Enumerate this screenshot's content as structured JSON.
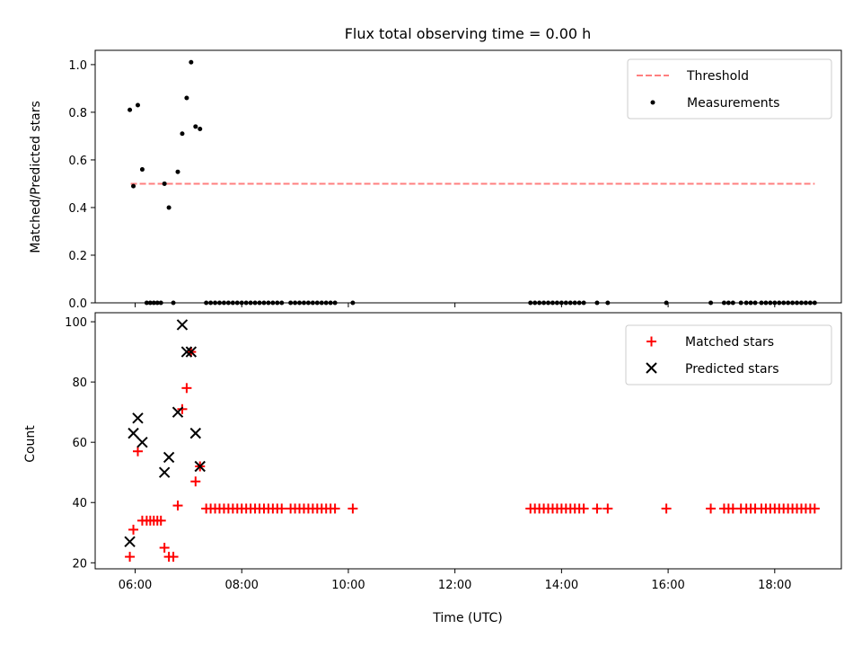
{
  "chart_data": [
    {
      "type": "scatter",
      "title": "Flux total observing time = 0.00 h",
      "ylabel": "Matched/Predicted stars",
      "xlabel": "",
      "ylim": [
        0,
        1.06
      ],
      "xlim": [
        "05:15",
        "19:15"
      ],
      "yticks": [
        "0.0",
        "0.2",
        "0.4",
        "0.6",
        "0.8",
        "1.0"
      ],
      "legend_position": "top-right",
      "threshold": {
        "name": "Threshold",
        "value": 0.5,
        "x_start": "05:55",
        "x_end": "18:45",
        "color": "#ff7f7f",
        "style": "dashed"
      },
      "series": [
        {
          "name": "Measurements",
          "color": "#000000",
          "marker": "dot",
          "points": [
            [
              "05:54",
              0.81
            ],
            [
              "05:58",
              0.49
            ],
            [
              "06:03",
              0.83
            ],
            [
              "06:08",
              0.56
            ],
            [
              "06:13",
              0
            ],
            [
              "06:17",
              0
            ],
            [
              "06:21",
              0
            ],
            [
              "06:25",
              0
            ],
            [
              "06:29",
              0
            ],
            [
              "06:33",
              0.5
            ],
            [
              "06:38",
              0.4
            ],
            [
              "06:43",
              0
            ],
            [
              "06:48",
              0.55
            ],
            [
              "06:53",
              0.71
            ],
            [
              "06:58",
              0.86
            ],
            [
              "07:03",
              1.01
            ],
            [
              "07:08",
              0.74
            ],
            [
              "07:13",
              0.73
            ],
            [
              "07:20",
              0
            ],
            [
              "07:25",
              0
            ],
            [
              "07:30",
              0
            ],
            [
              "07:35",
              0
            ],
            [
              "07:40",
              0
            ],
            [
              "07:45",
              0
            ],
            [
              "07:50",
              0
            ],
            [
              "07:55",
              0
            ],
            [
              "08:00",
              0
            ],
            [
              "08:05",
              0
            ],
            [
              "08:10",
              0
            ],
            [
              "08:15",
              0
            ],
            [
              "08:20",
              0
            ],
            [
              "08:25",
              0
            ],
            [
              "08:30",
              0
            ],
            [
              "08:35",
              0
            ],
            [
              "08:40",
              0
            ],
            [
              "08:45",
              0
            ],
            [
              "08:55",
              0
            ],
            [
              "09:00",
              0
            ],
            [
              "09:05",
              0
            ],
            [
              "09:10",
              0
            ],
            [
              "09:15",
              0
            ],
            [
              "09:20",
              0
            ],
            [
              "09:25",
              0
            ],
            [
              "09:30",
              0
            ],
            [
              "09:35",
              0
            ],
            [
              "09:40",
              0
            ],
            [
              "09:45",
              0
            ],
            [
              "10:05",
              0
            ],
            [
              "13:25",
              0
            ],
            [
              "13:30",
              0
            ],
            [
              "13:35",
              0
            ],
            [
              "13:40",
              0
            ],
            [
              "13:45",
              0
            ],
            [
              "13:50",
              0
            ],
            [
              "13:55",
              0
            ],
            [
              "14:00",
              0
            ],
            [
              "14:05",
              0
            ],
            [
              "14:10",
              0
            ],
            [
              "14:15",
              0
            ],
            [
              "14:20",
              0
            ],
            [
              "14:25",
              0
            ],
            [
              "14:40",
              0
            ],
            [
              "14:52",
              0
            ],
            [
              "15:58",
              0
            ],
            [
              "16:48",
              0
            ],
            [
              "17:03",
              0
            ],
            [
              "17:08",
              0
            ],
            [
              "17:13",
              0
            ],
            [
              "17:22",
              0
            ],
            [
              "17:28",
              0
            ],
            [
              "17:33",
              0
            ],
            [
              "17:38",
              0
            ],
            [
              "17:45",
              0
            ],
            [
              "17:50",
              0
            ],
            [
              "17:55",
              0
            ],
            [
              "18:00",
              0
            ],
            [
              "18:05",
              0
            ],
            [
              "18:10",
              0
            ],
            [
              "18:15",
              0
            ],
            [
              "18:20",
              0
            ],
            [
              "18:25",
              0
            ],
            [
              "18:30",
              0
            ],
            [
              "18:35",
              0
            ],
            [
              "18:40",
              0
            ],
            [
              "18:45",
              0
            ]
          ]
        }
      ]
    },
    {
      "type": "scatter",
      "title": "",
      "xlabel": "Time (UTC)",
      "ylabel": "Count",
      "ylim": [
        18,
        103
      ],
      "xlim": [
        "05:15",
        "19:15"
      ],
      "yticks": [
        "20",
        "40",
        "60",
        "80",
        "100"
      ],
      "xticks": [
        "06:00",
        "08:00",
        "10:00",
        "12:00",
        "14:00",
        "16:00",
        "18:00"
      ],
      "legend_position": "top-right",
      "series": [
        {
          "name": "Matched stars",
          "color": "#ff0000",
          "marker": "plus",
          "points": [
            [
              "05:54",
              22
            ],
            [
              "05:58",
              31
            ],
            [
              "06:03",
              57
            ],
            [
              "06:08",
              34
            ],
            [
              "06:13",
              34
            ],
            [
              "06:17",
              34
            ],
            [
              "06:21",
              34
            ],
            [
              "06:25",
              34
            ],
            [
              "06:29",
              34
            ],
            [
              "06:33",
              25
            ],
            [
              "06:38",
              22
            ],
            [
              "06:43",
              22
            ],
            [
              "06:48",
              39
            ],
            [
              "06:53",
              71
            ],
            [
              "06:58",
              78
            ],
            [
              "07:03",
              90
            ],
            [
              "07:08",
              47
            ],
            [
              "07:13",
              52
            ],
            [
              "07:20",
              38
            ],
            [
              "07:25",
              38
            ],
            [
              "07:30",
              38
            ],
            [
              "07:35",
              38
            ],
            [
              "07:40",
              38
            ],
            [
              "07:45",
              38
            ],
            [
              "07:50",
              38
            ],
            [
              "07:55",
              38
            ],
            [
              "08:00",
              38
            ],
            [
              "08:05",
              38
            ],
            [
              "08:10",
              38
            ],
            [
              "08:15",
              38
            ],
            [
              "08:20",
              38
            ],
            [
              "08:25",
              38
            ],
            [
              "08:30",
              38
            ],
            [
              "08:35",
              38
            ],
            [
              "08:40",
              38
            ],
            [
              "08:45",
              38
            ],
            [
              "08:55",
              38
            ],
            [
              "09:00",
              38
            ],
            [
              "09:05",
              38
            ],
            [
              "09:10",
              38
            ],
            [
              "09:15",
              38
            ],
            [
              "09:20",
              38
            ],
            [
              "09:25",
              38
            ],
            [
              "09:30",
              38
            ],
            [
              "09:35",
              38
            ],
            [
              "09:40",
              38
            ],
            [
              "09:45",
              38
            ],
            [
              "10:05",
              38
            ],
            [
              "13:25",
              38
            ],
            [
              "13:30",
              38
            ],
            [
              "13:35",
              38
            ],
            [
              "13:40",
              38
            ],
            [
              "13:45",
              38
            ],
            [
              "13:50",
              38
            ],
            [
              "13:55",
              38
            ],
            [
              "14:00",
              38
            ],
            [
              "14:05",
              38
            ],
            [
              "14:10",
              38
            ],
            [
              "14:15",
              38
            ],
            [
              "14:20",
              38
            ],
            [
              "14:25",
              38
            ],
            [
              "14:40",
              38
            ],
            [
              "14:52",
              38
            ],
            [
              "15:58",
              38
            ],
            [
              "16:48",
              38
            ],
            [
              "17:03",
              38
            ],
            [
              "17:08",
              38
            ],
            [
              "17:13",
              38
            ],
            [
              "17:22",
              38
            ],
            [
              "17:28",
              38
            ],
            [
              "17:33",
              38
            ],
            [
              "17:38",
              38
            ],
            [
              "17:45",
              38
            ],
            [
              "17:50",
              38
            ],
            [
              "17:55",
              38
            ],
            [
              "18:00",
              38
            ],
            [
              "18:05",
              38
            ],
            [
              "18:10",
              38
            ],
            [
              "18:15",
              38
            ],
            [
              "18:20",
              38
            ],
            [
              "18:25",
              38
            ],
            [
              "18:30",
              38
            ],
            [
              "18:35",
              38
            ],
            [
              "18:40",
              38
            ],
            [
              "18:45",
              38
            ]
          ]
        },
        {
          "name": "Predicted stars",
          "color": "#000000",
          "marker": "x",
          "points": [
            [
              "05:54",
              27
            ],
            [
              "05:58",
              63
            ],
            [
              "06:03",
              68
            ],
            [
              "06:08",
              60
            ],
            [
              "06:33",
              50
            ],
            [
              "06:38",
              55
            ],
            [
              "06:48",
              70
            ],
            [
              "06:53",
              99
            ],
            [
              "06:58",
              90
            ],
            [
              "07:03",
              90
            ],
            [
              "07:08",
              63
            ],
            [
              "07:13",
              52
            ]
          ]
        }
      ]
    }
  ]
}
